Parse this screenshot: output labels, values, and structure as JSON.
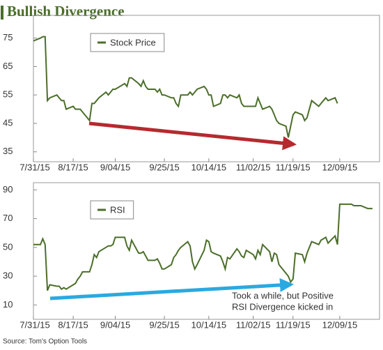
{
  "title": "Bullish Divergence",
  "source": "Source: Tom's Option Tools",
  "chart_data": [
    {
      "type": "line",
      "x": [
        "2015-07-31",
        "2015-08-03",
        "2015-08-04",
        "2015-08-05",
        "2015-08-06",
        "2015-08-07",
        "2015-08-10",
        "2015-08-11",
        "2015-08-12",
        "2015-08-13",
        "2015-08-14",
        "2015-08-17",
        "2015-08-18",
        "2015-08-19",
        "2015-08-20",
        "2015-08-21",
        "2015-08-24",
        "2015-08-25",
        "2015-08-26",
        "2015-08-27",
        "2015-08-28",
        "2015-08-31",
        "2015-09-01",
        "2015-09-02",
        "2015-09-03",
        "2015-09-04",
        "2015-09-08",
        "2015-09-09",
        "2015-09-10",
        "2015-09-11",
        "2015-09-14",
        "2015-09-15",
        "2015-09-16",
        "2015-09-17",
        "2015-09-18",
        "2015-09-21",
        "2015-09-22",
        "2015-09-23",
        "2015-09-24",
        "2015-09-25",
        "2015-09-28",
        "2015-09-29",
        "2015-09-30",
        "2015-10-01",
        "2015-10-02",
        "2015-10-05",
        "2015-10-06",
        "2015-10-07",
        "2015-10-08",
        "2015-10-09",
        "2015-10-12",
        "2015-10-13",
        "2015-10-14",
        "2015-10-15",
        "2015-10-16",
        "2015-10-19",
        "2015-10-20",
        "2015-10-21",
        "2015-10-22",
        "2015-10-23",
        "2015-10-26",
        "2015-10-27",
        "2015-10-28",
        "2015-10-29",
        "2015-10-30",
        "2015-11-02",
        "2015-11-03",
        "2015-11-04",
        "2015-11-05",
        "2015-11-06",
        "2015-11-09",
        "2015-11-10",
        "2015-11-11",
        "2015-11-12",
        "2015-11-13",
        "2015-11-16",
        "2015-11-17",
        "2015-11-18",
        "2015-11-19",
        "2015-11-20",
        "2015-11-23",
        "2015-11-24",
        "2015-11-25",
        "2015-11-27",
        "2015-11-30",
        "2015-12-01",
        "2015-12-02",
        "2015-12-03",
        "2015-12-04",
        "2015-12-07",
        "2015-12-08"
      ],
      "series": [
        {
          "name": "Stock Price",
          "color": "#4b6e2a",
          "values": [
            74,
            75,
            75.5,
            75.5,
            53,
            54,
            55,
            54,
            53,
            53,
            50,
            51,
            50,
            50,
            50,
            49,
            46,
            52,
            52,
            53,
            54,
            56,
            55,
            56,
            57,
            57,
            59,
            58,
            61,
            61,
            59,
            58,
            60,
            58,
            57,
            57,
            56,
            57,
            55,
            55,
            54,
            54,
            52,
            51,
            55,
            55,
            56,
            55,
            56,
            57,
            58,
            57,
            55,
            55,
            51,
            52,
            55,
            55,
            54,
            55,
            54,
            55,
            52,
            51,
            51,
            51,
            51,
            54,
            52,
            50,
            51,
            50,
            48,
            46,
            45,
            44,
            40,
            44,
            48,
            49,
            48,
            46,
            47,
            53,
            51,
            52,
            53,
            54,
            53,
            54,
            52
          ]
        }
      ],
      "xlim": [
        "2015-07-31",
        "2015-12-26"
      ],
      "xticks": [
        {
          "value": "2015-07-31",
          "label": "7/31/15"
        },
        {
          "value": "2015-08-17",
          "label": "8/17/15"
        },
        {
          "value": "2015-09-04",
          "label": "9/04/15"
        },
        {
          "value": "2015-09-25",
          "label": "9/25/15"
        },
        {
          "value": "2015-10-14",
          "label": "10/14/15"
        },
        {
          "value": "2015-11-02",
          "label": "11/02/15"
        },
        {
          "value": "2015-11-19",
          "label": "11/19/15"
        },
        {
          "value": "2015-12-09",
          "label": "12/09/15"
        }
      ],
      "ylim": [
        31.5,
        83
      ],
      "yticks": [
        35,
        45,
        55,
        65,
        75
      ],
      "legend": "upper left"
    },
    {
      "type": "line",
      "x": [
        "2015-07-31",
        "2015-08-03",
        "2015-08-04",
        "2015-08-05",
        "2015-08-06",
        "2015-08-07",
        "2015-08-10",
        "2015-08-11",
        "2015-08-12",
        "2015-08-13",
        "2015-08-14",
        "2015-08-17",
        "2015-08-18",
        "2015-08-19",
        "2015-08-20",
        "2015-08-21",
        "2015-08-24",
        "2015-08-25",
        "2015-08-26",
        "2015-08-27",
        "2015-08-28",
        "2015-08-31",
        "2015-09-01",
        "2015-09-02",
        "2015-09-03",
        "2015-09-04",
        "2015-09-08",
        "2015-09-09",
        "2015-09-10",
        "2015-09-11",
        "2015-09-14",
        "2015-09-15",
        "2015-09-16",
        "2015-09-17",
        "2015-09-18",
        "2015-09-21",
        "2015-09-22",
        "2015-09-23",
        "2015-09-24",
        "2015-09-25",
        "2015-09-28",
        "2015-09-29",
        "2015-09-30",
        "2015-10-01",
        "2015-10-02",
        "2015-10-05",
        "2015-10-06",
        "2015-10-07",
        "2015-10-08",
        "2015-10-09",
        "2015-10-12",
        "2015-10-13",
        "2015-10-14",
        "2015-10-15",
        "2015-10-16",
        "2015-10-19",
        "2015-10-20",
        "2015-10-21",
        "2015-10-22",
        "2015-10-23",
        "2015-10-26",
        "2015-10-27",
        "2015-10-28",
        "2015-10-29",
        "2015-10-30",
        "2015-11-02",
        "2015-11-03",
        "2015-11-04",
        "2015-11-05",
        "2015-11-06",
        "2015-11-09",
        "2015-11-10",
        "2015-11-11",
        "2015-11-12",
        "2015-11-13",
        "2015-11-16",
        "2015-11-17",
        "2015-11-18",
        "2015-11-19",
        "2015-11-20",
        "2015-11-23",
        "2015-11-24",
        "2015-11-25",
        "2015-11-27",
        "2015-11-30",
        "2015-12-01",
        "2015-12-02",
        "2015-12-03",
        "2015-12-04",
        "2015-12-07",
        "2015-12-08",
        "2015-12-09",
        "2015-12-10",
        "2015-12-11",
        "2015-12-14",
        "2015-12-15",
        "2015-12-16",
        "2015-12-17",
        "2015-12-18",
        "2015-12-21",
        "2015-12-22",
        "2015-12-23"
      ],
      "series": [
        {
          "name": "RSI",
          "color": "#4b6e2a",
          "values": [
            52,
            52,
            56,
            52,
            20,
            24,
            23,
            23,
            21,
            22,
            21,
            24,
            25,
            28,
            30,
            33,
            33,
            38,
            45,
            43,
            47,
            50,
            51,
            51,
            52,
            57,
            57,
            51,
            48,
            55,
            46,
            46,
            47,
            44,
            41,
            41,
            42,
            39,
            35,
            35,
            38,
            43,
            45,
            48,
            50,
            54,
            51,
            40,
            35,
            38,
            48,
            55,
            54,
            47,
            46,
            44,
            40,
            35,
            43,
            42,
            49,
            47,
            44,
            43,
            48,
            45,
            42,
            48,
            45,
            52,
            47,
            40,
            46,
            45,
            38,
            32,
            30,
            26,
            28,
            46,
            45,
            40,
            46,
            54,
            52,
            55,
            56,
            57,
            53,
            58,
            52,
            80,
            80,
            80,
            80,
            79,
            79,
            79,
            79,
            77,
            77,
            77
          ]
        }
      ],
      "xlim": [
        "2015-07-31",
        "2015-12-26"
      ],
      "xticks": [
        {
          "value": "2015-07-31",
          "label": "7/31/15"
        },
        {
          "value": "2015-08-17",
          "label": "8/17/15"
        },
        {
          "value": "2015-09-04",
          "label": "9/04/15"
        },
        {
          "value": "2015-09-25",
          "label": "9/25/15"
        },
        {
          "value": "2015-10-14",
          "label": "10/14/15"
        },
        {
          "value": "2015-11-02",
          "label": "11/02/15"
        },
        {
          "value": "2015-11-19",
          "label": "11/19/15"
        },
        {
          "value": "2015-12-09",
          "label": "12/09/15"
        }
      ],
      "ylim": [
        0,
        95
      ],
      "yticks": [
        10,
        30,
        50,
        70,
        90
      ],
      "legend": "upper left",
      "annotations": [
        "Took a while, but Positive",
        "RSI Divergence kicked in"
      ]
    }
  ]
}
